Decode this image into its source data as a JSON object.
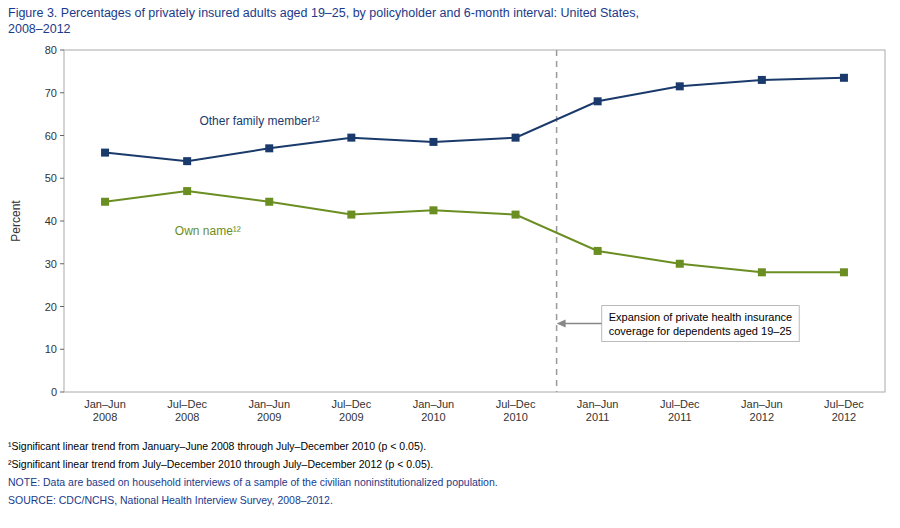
{
  "chart_data": {
    "type": "line",
    "title": "Figure 3. Percentages of privately insured adults aged 19–25, by policyholder and 6-month interval: United States,\n2008–2012",
    "y_label": "Percent",
    "categories": [
      "Jan–Jun\n2008",
      "Jul–Dec\n2008",
      "Jan–Jun\n2009",
      "Jul–Dec\n2009",
      "Jan–Jun\n2010",
      "Jul–Dec\n2010",
      "Jan–Jun\n2011",
      "Jul–Dec\n2011",
      "Jan–Jun\n2012",
      "Jul–Dec\n2012"
    ],
    "series": [
      {
        "name": "Other family member¹²",
        "color": "#1a3a6b",
        "marker": "square",
        "values": [
          56.0,
          54.0,
          57.0,
          59.5,
          58.5,
          59.5,
          68.0,
          71.5,
          73.0,
          73.5
        ]
      },
      {
        "name": "Own name¹²",
        "color": "#6b8e23",
        "marker": "square",
        "values": [
          44.5,
          47.0,
          44.5,
          41.5,
          42.5,
          41.5,
          33.0,
          30.0,
          28.0,
          28.0
        ]
      }
    ],
    "ylim": [
      0,
      80
    ],
    "yticks": [
      0,
      10,
      20,
      30,
      40,
      50,
      60,
      70,
      80
    ],
    "grid": false,
    "annotations": [
      {
        "text": "Expansion of private health insurance\ncoverage for dependents aged 19–25",
        "x": 5.5,
        "y": 16
      }
    ],
    "notes": [
      "¹Significant linear trend from January–June 2008 through July–December 2010 (p < 0.05).",
      "²Significant linear trend from July–December 2010 through July–December 2012 (p < 0.05).",
      "NOTE: Data are based on household interviews of a sample of the civilian noninstitutionalized population.",
      "SOURCE: CDC/NCHS, National Health Interview Survey, 2008–2012."
    ]
  }
}
